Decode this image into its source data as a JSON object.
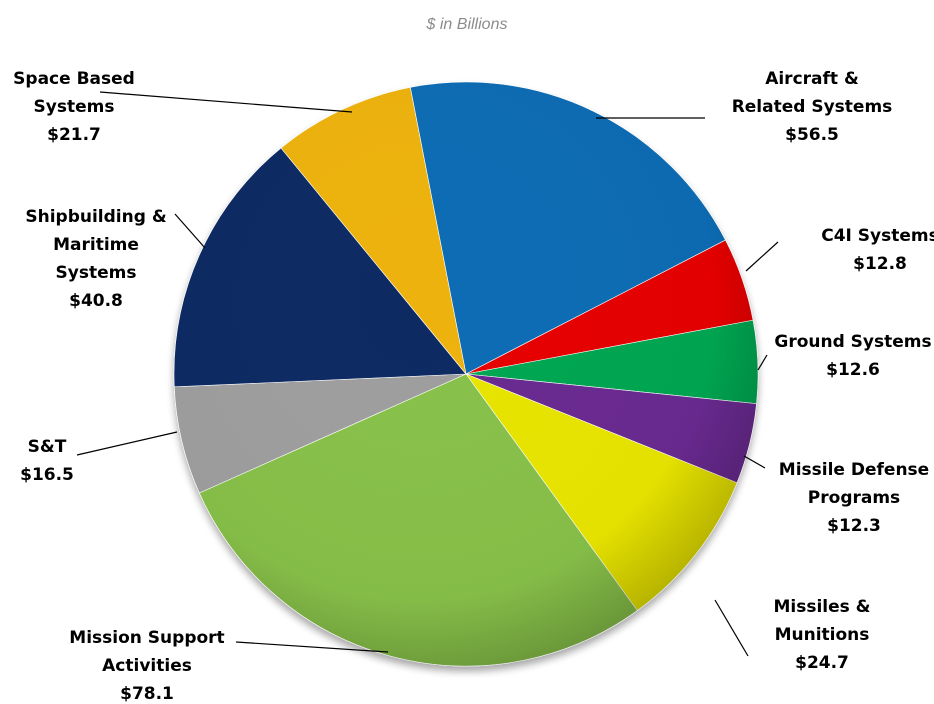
{
  "chart_data": {
    "type": "pie",
    "title": "",
    "subtitle": "$ in Billions",
    "slices": [
      {
        "name_lines": [
          "Aircraft &",
          "Related Systems"
        ],
        "value": 56.5,
        "value_label": "$56.5",
        "color": "#0b6cb4"
      },
      {
        "name_lines": [
          "C4I Systems"
        ],
        "value": 12.8,
        "value_label": "$12.8",
        "color": "#e60000"
      },
      {
        "name_lines": [
          "Ground Systems"
        ],
        "value": 12.6,
        "value_label": "$12.6",
        "color": "#00a651"
      },
      {
        "name_lines": [
          "Missile Defense",
          "Programs"
        ],
        "value": 12.3,
        "value_label": "$12.3",
        "color": "#6a2c91"
      },
      {
        "name_lines": [
          "Missiles &",
          "Munitions"
        ],
        "value": 24.7,
        "value_label": "$24.7",
        "color": "#e8e400"
      },
      {
        "name_lines": [
          "Mission Support",
          "Activities"
        ],
        "value": 78.1,
        "value_label": "$78.1",
        "color": "#87c04a"
      },
      {
        "name_lines": [
          "S&T"
        ],
        "value": 16.5,
        "value_label": "$16.5",
        "color": "#9e9e9e"
      },
      {
        "name_lines": [
          "Shipbuilding &",
          "Maritime",
          "Systems"
        ],
        "value": 40.8,
        "value_label": "$40.8",
        "color": "#0f2b63"
      },
      {
        "name_lines": [
          "Space Based",
          "Systems"
        ],
        "value": 21.7,
        "value_label": "$21.7",
        "color": "#edb20c"
      }
    ]
  }
}
